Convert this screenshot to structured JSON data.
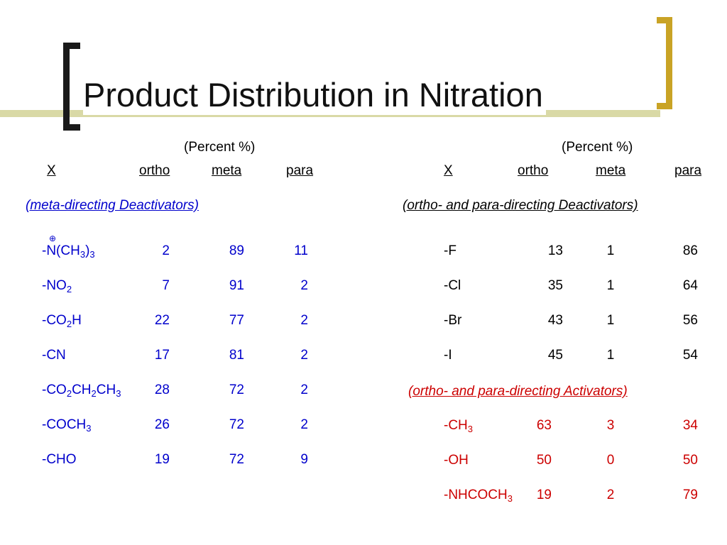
{
  "title": "Product Distribution in Nitration",
  "left": {
    "percent_label": "(Percent %)",
    "headers": {
      "x": "X",
      "ortho": "ortho",
      "meta": "meta",
      "para": "para"
    },
    "section_label": "(meta-directing Deactivators)",
    "charge_symbol": "⊕",
    "rows": [
      {
        "x": "-N(CH3)3",
        "ortho": "2",
        "meta": "89",
        "para": "11"
      },
      {
        "x": "-NO2",
        "ortho": "7",
        "meta": "91",
        "para": "2"
      },
      {
        "x": "-CO2H",
        "ortho": "22",
        "meta": "77",
        "para": "2"
      },
      {
        "x": "-CN",
        "ortho": "17",
        "meta": "81",
        "para": "2"
      },
      {
        "x": "-CO2CH2CH3",
        "ortho": "28",
        "meta": "72",
        "para": "2"
      },
      {
        "x": "-COCH3",
        "ortho": "26",
        "meta": "72",
        "para": "2"
      },
      {
        "x": "-CHO",
        "ortho": "19",
        "meta": "72",
        "para": "9"
      }
    ]
  },
  "right": {
    "percent_label": "(Percent %)",
    "headers": {
      "x": "X",
      "ortho": "ortho",
      "meta": "meta",
      "para": "para"
    },
    "deactivators_label": "(ortho- and para-directing Deactivators)",
    "deactivators": [
      {
        "x": "-F",
        "ortho": "13",
        "meta": "1",
        "para": "86"
      },
      {
        "x": "-Cl",
        "ortho": "35",
        "meta": "1",
        "para": "64"
      },
      {
        "x": "-Br",
        "ortho": "43",
        "meta": "1",
        "para": "56"
      },
      {
        "x": "-I",
        "ortho": "45",
        "meta": "1",
        "para": "54"
      }
    ],
    "activators_label": "(ortho- and para-directing Activators)",
    "activators": [
      {
        "x": "-CH3",
        "ortho": "63",
        "meta": "3",
        "para": "34"
      },
      {
        "x": "-OH",
        "ortho": "50",
        "meta": "0",
        "para": "50"
      },
      {
        "x": "-NHCOCH3",
        "ortho": "19",
        "meta": "2",
        "para": "79"
      }
    ]
  },
  "colors": {
    "blue": "#0000cc",
    "red": "#cc0000",
    "bracket_left": "#1a1a1a",
    "bracket_right": "#c9a325",
    "deco_line": "#d9d9a6"
  }
}
